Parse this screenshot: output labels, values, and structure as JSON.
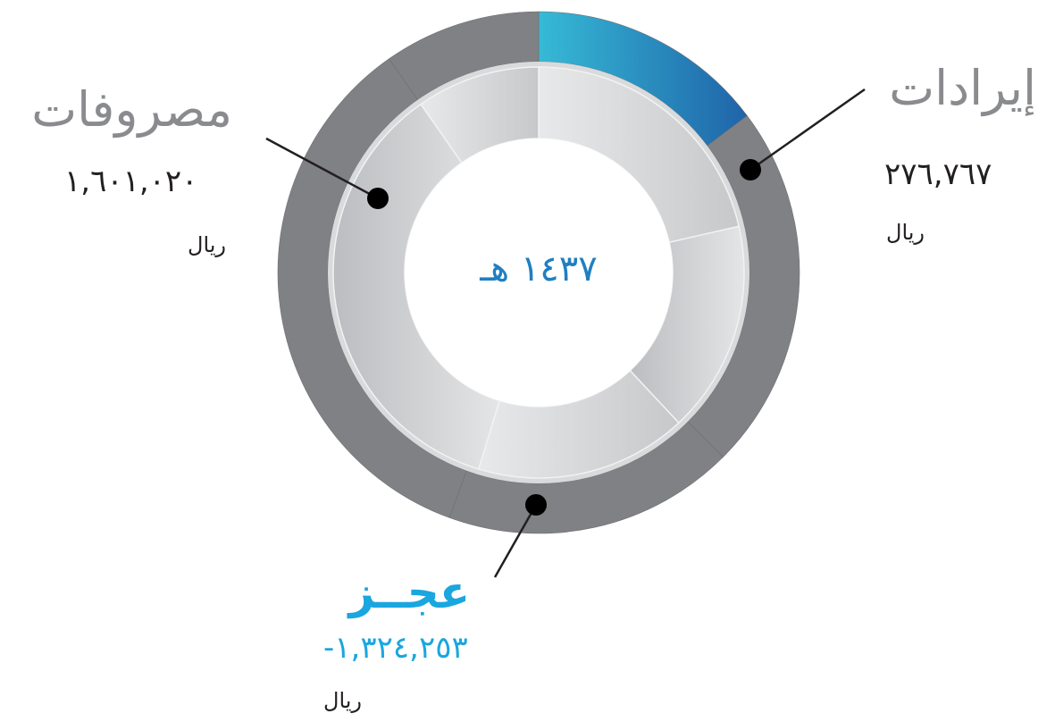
{
  "chart_data": {
    "type": "pie",
    "center_label": "١٤٣٧ هـ",
    "outer_ring": [
      {
        "name": "إيرادات",
        "value": 276767,
        "color": "gradient-blue"
      },
      {
        "name": "مصروفات",
        "value": 1601020,
        "color": "#808184"
      }
    ],
    "labels": {
      "revenue": {
        "title": "إيرادات",
        "value": "٢٧٦,٧٦٧",
        "unit": "ريال"
      },
      "expenses": {
        "title": "مصروفات",
        "value": "١,٦٠١,٠٢٠",
        "unit": "ريال"
      },
      "deficit": {
        "title": "عجــز",
        "value": "-١,٣٢٤,٢٥٣",
        "unit": "ريال"
      }
    },
    "colors": {
      "outer_gray": "#808184",
      "blue_start": "#36bad6",
      "blue_end": "#1f64a9",
      "accent_blue": "#1aa6df",
      "dark": "#231f20"
    }
  }
}
